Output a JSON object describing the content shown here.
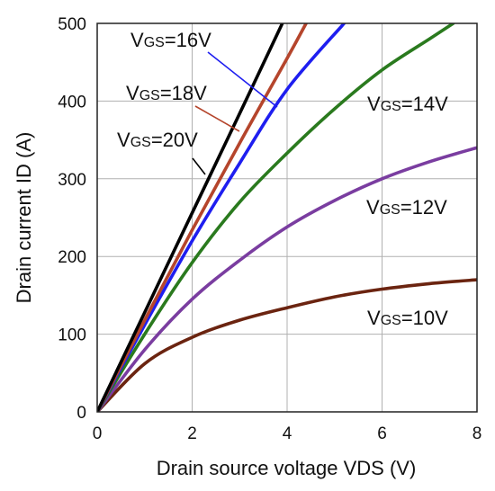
{
  "chart_data": {
    "type": "line",
    "title": "",
    "xlabel": "Drain source voltage VDS (V)",
    "ylabel": "Drain current ID (A)",
    "xlim": [
      0,
      8
    ],
    "ylim": [
      0,
      500
    ],
    "x_ticks": [
      "0",
      "2",
      "4",
      "6",
      "8"
    ],
    "y_ticks": [
      "0",
      "100",
      "200",
      "300",
      "400",
      "500"
    ],
    "grid": true,
    "series": [
      {
        "name": "VGS=20V",
        "prefix": "V",
        "sub": "GS",
        "suffix": "=20V",
        "color": "#000000",
        "x": [
          0,
          1,
          2,
          3,
          3.9
        ],
        "y": [
          0,
          128,
          256,
          384,
          500
        ]
      },
      {
        "name": "VGS=18V",
        "prefix": "V",
        "sub": "GS",
        "suffix": "=18V",
        "color": "#b5452c",
        "x": [
          0,
          1,
          2,
          3,
          4,
          4.4
        ],
        "y": [
          0,
          118,
          234,
          346,
          455,
          500
        ]
      },
      {
        "name": "VGS=16V",
        "prefix": "V",
        "sub": "GS",
        "suffix": "=16V",
        "color": "#1e1ef0",
        "x": [
          0,
          1,
          2,
          3,
          4,
          5.2
        ],
        "y": [
          0,
          112,
          220,
          320,
          415,
          500
        ]
      },
      {
        "name": "VGS=14V",
        "prefix": "V",
        "sub": "GS",
        "suffix": "=14V",
        "color": "#2a7a1e",
        "x": [
          0,
          1,
          2,
          3,
          4,
          5,
          6,
          7,
          7.5
        ],
        "y": [
          0,
          100,
          192,
          270,
          333,
          390,
          440,
          480,
          500
        ]
      },
      {
        "name": "VGS=12V",
        "prefix": "V",
        "sub": "GS",
        "suffix": "=12V",
        "color": "#7a3da0",
        "x": [
          0,
          1,
          2,
          3,
          4,
          5,
          6,
          7,
          8
        ],
        "y": [
          0,
          80,
          145,
          195,
          238,
          272,
          300,
          322,
          340
        ]
      },
      {
        "name": "VGS=10V",
        "prefix": "V",
        "sub": "GS",
        "suffix": "=10V",
        "color": "#6b2410",
        "x": [
          0,
          1,
          2,
          3,
          4,
          5,
          6,
          7,
          8
        ],
        "y": [
          0,
          62,
          96,
          118,
          134,
          148,
          158,
          165,
          170
        ]
      }
    ]
  }
}
